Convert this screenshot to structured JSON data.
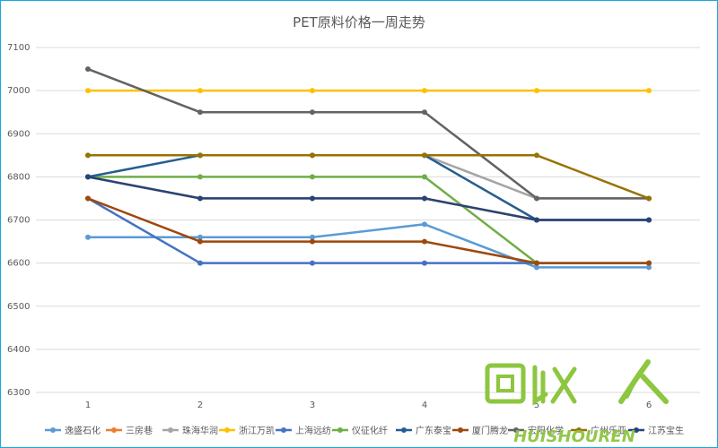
{
  "chart_data": {
    "type": "line",
    "title": "PET原料价格一周走势",
    "xlabel": "",
    "ylabel": "",
    "x": [
      1,
      2,
      3,
      4,
      5,
      6
    ],
    "x_tick_labels": [
      "1",
      "2",
      "3",
      "4",
      "5",
      "6"
    ],
    "ylim": [
      6300,
      7100
    ],
    "y_ticks": [
      6300,
      6400,
      6500,
      6600,
      6700,
      6800,
      6900,
      7000,
      7100
    ],
    "grid": true,
    "legend_position": "bottom",
    "series": [
      {
        "name": "逸盛石化",
        "color": "#5b9bd5",
        "values": [
          6660,
          6660,
          6660,
          6690,
          6590,
          6590
        ]
      },
      {
        "name": "三房巷",
        "color": "#ed7d31",
        "values": [
          6800,
          6750,
          6750,
          6750,
          6700,
          6700
        ]
      },
      {
        "name": "珠海华润",
        "color": "#a5a5a5",
        "values": [
          6850,
          6850,
          6850,
          6850,
          6750,
          6750
        ]
      },
      {
        "name": "浙江万凯",
        "color": "#ffc000",
        "values": [
          7000,
          7000,
          7000,
          7000,
          7000,
          7000
        ]
      },
      {
        "name": "上海远纺",
        "color": "#4472c4",
        "values": [
          6750,
          6600,
          6600,
          6600,
          6600,
          6600
        ]
      },
      {
        "name": "仪征化纤",
        "color": "#70ad47",
        "values": [
          6800,
          6800,
          6800,
          6800,
          6600,
          6600
        ]
      },
      {
        "name": "广东泰宝",
        "color": "#255e91",
        "values": [
          6800,
          6850,
          6850,
          6850,
          6700,
          6700
        ]
      },
      {
        "name": "厦门腾龙",
        "color": "#9e480e",
        "values": [
          6750,
          6650,
          6650,
          6650,
          6600,
          6600
        ]
      },
      {
        "name": "宏阳化学",
        "color": "#636363",
        "values": [
          7050,
          6950,
          6950,
          6950,
          6750,
          6750
        ]
      },
      {
        "name": "广州乐亚",
        "color": "#997300",
        "values": [
          6850,
          6850,
          6850,
          6850,
          6850,
          6750
        ]
      },
      {
        "name": "江苏宝生",
        "color": "#264478",
        "values": [
          6800,
          6750,
          6750,
          6750,
          6700,
          6700
        ]
      }
    ]
  },
  "watermark": {
    "logo_text": "回收人",
    "logo_subtext": "HUISHOUREN",
    "color": "#8dc63f"
  }
}
